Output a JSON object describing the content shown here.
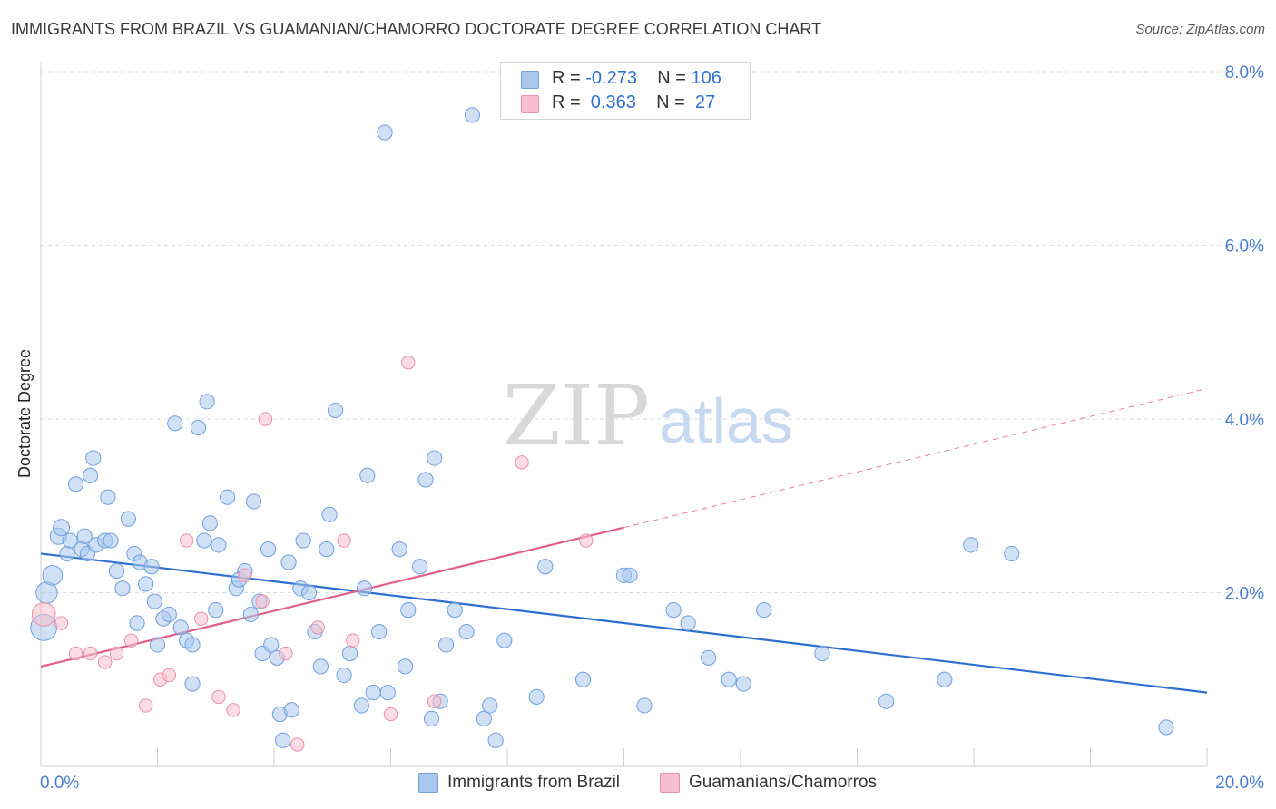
{
  "title": "IMMIGRANTS FROM BRAZIL VS GUAMANIAN/CHAMORRO DOCTORATE DEGREE CORRELATION CHART",
  "source": "Source: ZipAtlas.com",
  "watermark": {
    "zip": "ZIP",
    "atlas": "atlas"
  },
  "colors": {
    "blue_fill": "#aac8ef",
    "blue_stroke": "#6f9fdd",
    "blue_line": "#2d6fd1",
    "pink_fill": "#f7bfcf",
    "pink_stroke": "#ec8fab",
    "pink_line": "#e0608a",
    "axis_text": "#4a7fcf",
    "grid": "#dcdcdc"
  },
  "legend_top": {
    "rows": [
      {
        "r_label": "R =",
        "r_value": "-0.273",
        "n_label": "N =",
        "n_value": "106",
        "color": "blue"
      },
      {
        "r_label": "R =",
        "r_value": " 0.363",
        "n_label": "N =",
        "n_value": " 27",
        "color": "pink"
      }
    ]
  },
  "legend_bottom": [
    {
      "label": "Immigrants from Brazil",
      "color": "blue"
    },
    {
      "label": "Guamanians/Chamorros",
      "color": "pink"
    }
  ],
  "chart_data": {
    "type": "scatter",
    "title": "IMMIGRANTS FROM BRAZIL VS GUAMANIAN/CHAMORRO DOCTORATE DEGREE CORRELATION CHART",
    "xlabel": "",
    "ylabel": "Doctorate Degree",
    "xlim": [
      0,
      20
    ],
    "ylim": [
      0,
      8
    ],
    "x_tick_labels": [
      "0.0%",
      "20.0%"
    ],
    "y_ticks": [
      2,
      4,
      6,
      8
    ],
    "y_tick_labels": [
      "2.0%",
      "4.0%",
      "6.0%",
      "8.0%"
    ],
    "grid": true,
    "series": [
      {
        "name": "Immigrants from Brazil",
        "color": "blue",
        "trend": {
          "x": [
            0,
            20
          ],
          "y": [
            2.45,
            0.85
          ]
        },
        "points": [
          [
            0.05,
            1.6,
            1.6
          ],
          [
            0.1,
            2.0,
            1.3
          ],
          [
            0.2,
            2.2,
            1.2
          ],
          [
            0.3,
            2.65,
            1.0
          ],
          [
            0.35,
            2.75,
            1.0
          ],
          [
            0.45,
            2.45,
            0.9
          ],
          [
            0.5,
            2.6,
            0.9
          ],
          [
            0.6,
            3.25,
            0.9
          ],
          [
            0.7,
            2.5,
            0.9
          ],
          [
            0.75,
            2.65,
            0.9
          ],
          [
            0.8,
            2.45,
            0.9
          ],
          [
            0.85,
            3.35,
            0.9
          ],
          [
            0.9,
            3.55,
            0.9
          ],
          [
            0.95,
            2.55,
            0.9
          ],
          [
            1.1,
            2.6,
            0.9
          ],
          [
            1.15,
            3.1,
            0.9
          ],
          [
            1.2,
            2.6,
            0.9
          ],
          [
            1.3,
            2.25,
            0.9
          ],
          [
            1.4,
            2.05,
            0.9
          ],
          [
            1.5,
            2.85,
            0.9
          ],
          [
            1.6,
            2.45,
            0.9
          ],
          [
            1.65,
            1.65,
            0.9
          ],
          [
            1.7,
            2.35,
            0.9
          ],
          [
            1.8,
            2.1,
            0.9
          ],
          [
            1.9,
            2.3,
            0.9
          ],
          [
            1.95,
            1.9,
            0.9
          ],
          [
            2.0,
            1.4,
            0.9
          ],
          [
            2.1,
            1.7,
            0.9
          ],
          [
            2.2,
            1.75,
            0.9
          ],
          [
            2.3,
            3.95,
            0.9
          ],
          [
            2.4,
            1.6,
            0.9
          ],
          [
            2.5,
            1.45,
            0.9
          ],
          [
            2.6,
            1.4,
            0.9
          ],
          [
            2.6,
            0.95,
            0.9
          ],
          [
            2.7,
            3.9,
            0.9
          ],
          [
            2.8,
            2.6,
            0.9
          ],
          [
            2.85,
            4.2,
            0.9
          ],
          [
            2.9,
            2.8,
            0.9
          ],
          [
            3.0,
            1.8,
            0.9
          ],
          [
            3.05,
            2.55,
            0.9
          ],
          [
            3.2,
            3.1,
            0.9
          ],
          [
            3.35,
            2.05,
            0.9
          ],
          [
            3.4,
            2.15,
            0.9
          ],
          [
            3.5,
            2.25,
            0.9
          ],
          [
            3.6,
            1.75,
            0.9
          ],
          [
            3.65,
            3.05,
            0.9
          ],
          [
            3.75,
            1.9,
            0.9
          ],
          [
            3.8,
            1.3,
            0.9
          ],
          [
            3.9,
            2.5,
            0.9
          ],
          [
            3.95,
            1.4,
            0.9
          ],
          [
            4.05,
            1.25,
            0.9
          ],
          [
            4.1,
            0.6,
            0.9
          ],
          [
            4.15,
            0.3,
            0.9
          ],
          [
            4.25,
            2.35,
            0.9
          ],
          [
            4.3,
            0.65,
            0.9
          ],
          [
            4.45,
            2.05,
            0.9
          ],
          [
            4.5,
            2.6,
            0.9
          ],
          [
            4.6,
            2.0,
            0.9
          ],
          [
            4.7,
            1.55,
            0.9
          ],
          [
            4.8,
            1.15,
            0.9
          ],
          [
            4.9,
            2.5,
            0.9
          ],
          [
            4.95,
            2.9,
            0.9
          ],
          [
            5.05,
            4.1,
            0.9
          ],
          [
            5.2,
            1.05,
            0.9
          ],
          [
            5.3,
            1.3,
            0.9
          ],
          [
            5.5,
            0.7,
            0.9
          ],
          [
            5.55,
            2.05,
            0.9
          ],
          [
            5.6,
            3.35,
            0.9
          ],
          [
            5.7,
            0.85,
            0.9
          ],
          [
            5.8,
            1.55,
            0.9
          ],
          [
            5.9,
            7.3,
            0.9
          ],
          [
            5.95,
            0.85,
            0.9
          ],
          [
            6.15,
            2.5,
            0.9
          ],
          [
            6.25,
            1.15,
            0.9
          ],
          [
            6.3,
            1.8,
            0.9
          ],
          [
            6.5,
            2.3,
            0.9
          ],
          [
            6.6,
            3.3,
            0.9
          ],
          [
            6.7,
            0.55,
            0.9
          ],
          [
            6.75,
            3.55,
            0.9
          ],
          [
            6.85,
            0.75,
            0.9
          ],
          [
            6.95,
            1.4,
            0.9
          ],
          [
            7.1,
            1.8,
            0.9
          ],
          [
            7.3,
            1.55,
            0.9
          ],
          [
            7.4,
            7.5,
            0.9
          ],
          [
            7.6,
            0.55,
            0.9
          ],
          [
            7.7,
            0.7,
            0.9
          ],
          [
            7.8,
            0.3,
            0.9
          ],
          [
            7.95,
            1.45,
            0.9
          ],
          [
            8.5,
            0.8,
            0.9
          ],
          [
            8.65,
            2.3,
            0.9
          ],
          [
            9.3,
            1.0,
            0.9
          ],
          [
            10.0,
            2.2,
            0.9
          ],
          [
            10.1,
            2.2,
            0.9
          ],
          [
            10.35,
            0.7,
            0.9
          ],
          [
            10.85,
            1.8,
            0.9
          ],
          [
            11.1,
            1.65,
            0.9
          ],
          [
            11.45,
            1.25,
            0.9
          ],
          [
            11.8,
            1.0,
            0.9
          ],
          [
            12.05,
            0.95,
            0.9
          ],
          [
            12.4,
            1.8,
            0.9
          ],
          [
            13.4,
            1.3,
            0.9
          ],
          [
            14.5,
            0.75,
            0.9
          ],
          [
            15.5,
            1.0,
            0.9
          ],
          [
            15.95,
            2.55,
            0.9
          ],
          [
            16.65,
            2.45,
            0.9
          ],
          [
            19.3,
            0.45,
            0.9
          ]
        ]
      },
      {
        "name": "Guamanians/Chamorros",
        "color": "pink",
        "trend": {
          "x": [
            0,
            20
          ],
          "y": [
            1.15,
            4.35
          ],
          "solid_until": 10
        },
        "points": [
          [
            0.05,
            1.75,
            1.6
          ],
          [
            0.35,
            1.65,
            0.9
          ],
          [
            0.6,
            1.3,
            0.9
          ],
          [
            0.85,
            1.3,
            0.9
          ],
          [
            1.1,
            1.2,
            0.9
          ],
          [
            1.3,
            1.3,
            0.9
          ],
          [
            1.55,
            1.45,
            0.9
          ],
          [
            1.8,
            0.7,
            0.9
          ],
          [
            2.05,
            1.0,
            0.9
          ],
          [
            2.2,
            1.05,
            0.9
          ],
          [
            2.5,
            2.6,
            0.9
          ],
          [
            2.75,
            1.7,
            0.9
          ],
          [
            3.05,
            0.8,
            0.9
          ],
          [
            3.3,
            0.65,
            0.9
          ],
          [
            3.5,
            2.2,
            0.9
          ],
          [
            3.8,
            1.9,
            0.9
          ],
          [
            3.85,
            4.0,
            0.9
          ],
          [
            4.2,
            1.3,
            0.9
          ],
          [
            4.4,
            0.25,
            0.9
          ],
          [
            4.75,
            1.6,
            0.9
          ],
          [
            5.2,
            2.6,
            0.9
          ],
          [
            5.35,
            1.45,
            0.9
          ],
          [
            6.0,
            0.6,
            0.9
          ],
          [
            6.3,
            4.65,
            0.9
          ],
          [
            6.75,
            0.75,
            0.9
          ],
          [
            8.25,
            3.5,
            0.9
          ],
          [
            9.35,
            2.6,
            0.9
          ]
        ]
      }
    ]
  },
  "axis_labels": {
    "y": "Doctorate Degree",
    "x_left": "0.0%",
    "x_right": "20.0%",
    "y_ticks": [
      "2.0%",
      "4.0%",
      "6.0%",
      "8.0%"
    ]
  }
}
